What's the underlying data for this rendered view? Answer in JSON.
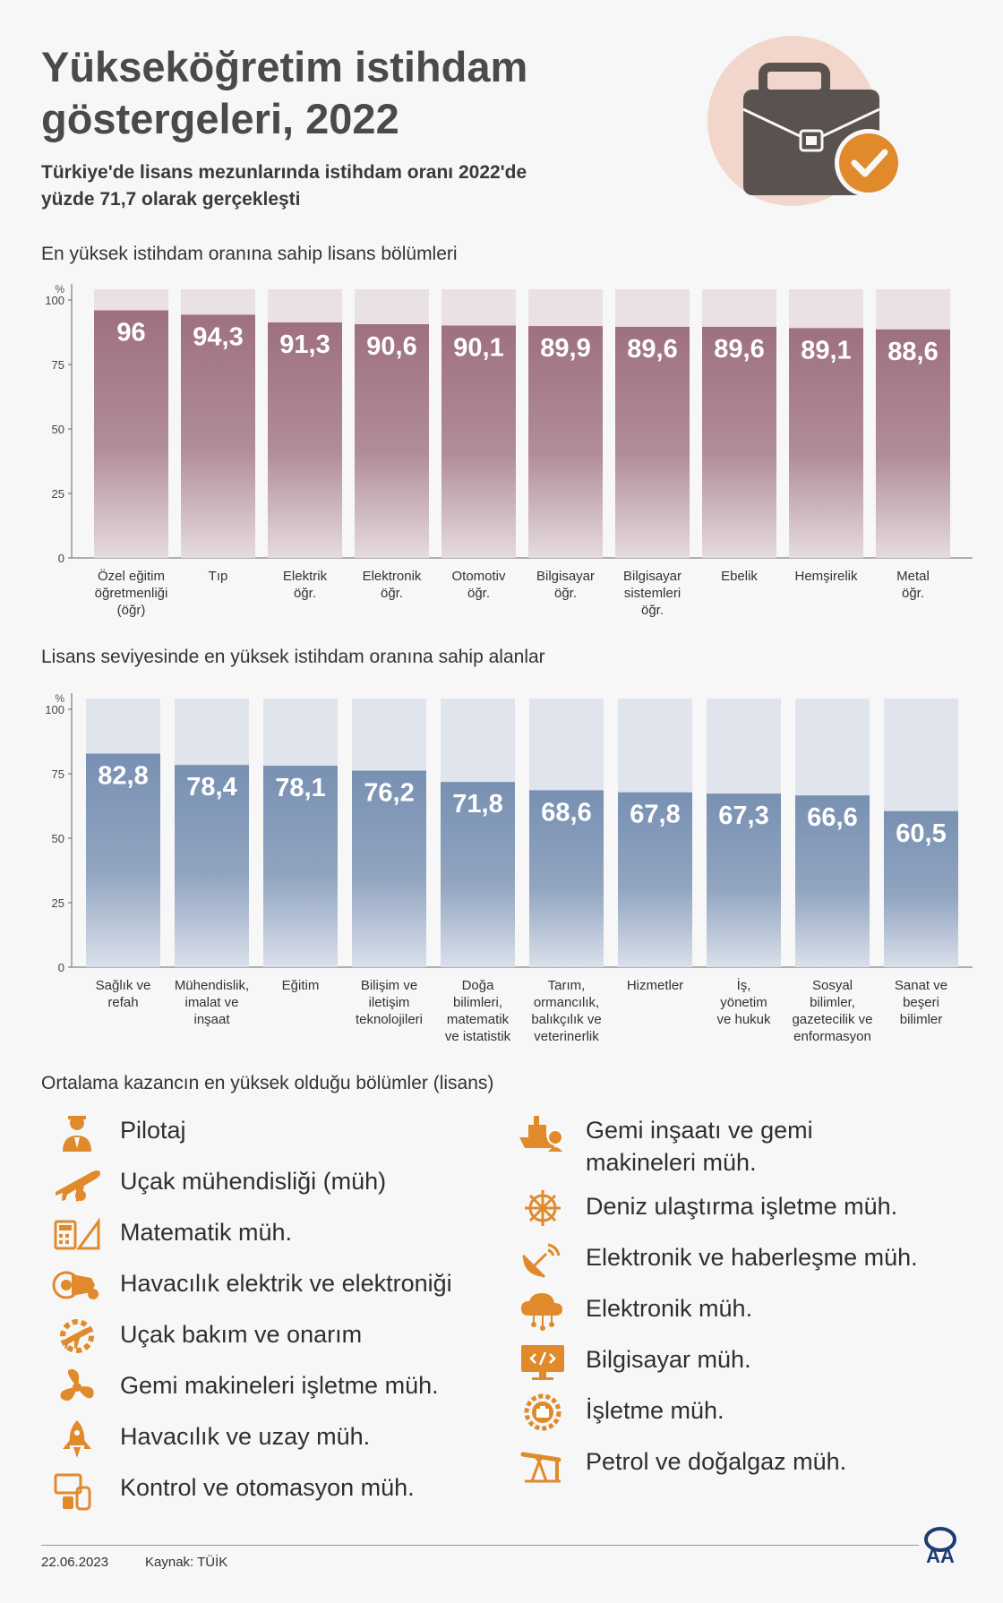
{
  "header": {
    "title_line1": "Yükseköğretim istihdam",
    "title_line2": "göstergeleri, 2022",
    "subtitle_line1": "Türkiye'de lisans mezunlarında istihdam oranı 2022'de",
    "subtitle_line2": "yüzde 71,7 olarak gerçekleşti"
  },
  "colors": {
    "chart1_bar": "#9e7080",
    "chart1_bg": "#e9e1e4",
    "chart2_bar": "#7890b2",
    "chart2_bg": "#dfe4ed",
    "icon_orange": "#e08a2c",
    "hero_circle": "#f2d6cb",
    "hero_case": "#5a524e"
  },
  "chart_data": [
    {
      "type": "bar",
      "title": "En yüksek istihdam oranına sahip lisans bölümleri",
      "unit": "%",
      "ylim": [
        0,
        100
      ],
      "yticks": [
        0,
        25,
        50,
        75,
        100
      ],
      "categories": [
        [
          "Özel eğitim",
          "öğretmenliği",
          "(öğr)"
        ],
        [
          "Tıp"
        ],
        [
          "Elektrik",
          "öğr."
        ],
        [
          "Elektronik",
          "öğr."
        ],
        [
          "Otomotiv",
          "öğr."
        ],
        [
          "Bilgisayar",
          "öğr."
        ],
        [
          "Bilgisayar",
          "sistemleri",
          "öğr."
        ],
        [
          "Ebelik"
        ],
        [
          "Hemşirelik"
        ],
        [
          "Metal",
          "öğr."
        ]
      ],
      "values": [
        96,
        94.3,
        91.3,
        90.6,
        90.1,
        89.9,
        89.6,
        89.6,
        89.1,
        88.6
      ],
      "value_labels": [
        "96",
        "94,3",
        "91,3",
        "90,6",
        "90,1",
        "89,9",
        "89,6",
        "89,6",
        "89,1",
        "88,6"
      ]
    },
    {
      "type": "bar",
      "title": "Lisans seviyesinde en yüksek istihdam oranına sahip alanlar",
      "unit": "%",
      "ylim": [
        0,
        100
      ],
      "yticks": [
        0,
        25,
        50,
        75,
        100
      ],
      "categories": [
        [
          "Sağlık ve",
          "refah"
        ],
        [
          "Mühendislik,",
          "imalat ve",
          "inşaat"
        ],
        [
          "Eğitim"
        ],
        [
          "Bilişim ve",
          "iletişim",
          "teknolojileri"
        ],
        [
          "Doğa",
          "bilimleri,",
          "matematik",
          "ve istatistik"
        ],
        [
          "Tarım,",
          "ormancılık,",
          "balıkçılık ve",
          "veterinerlik"
        ],
        [
          "Hizmetler"
        ],
        [
          "İş,",
          "yönetim",
          "ve hukuk"
        ],
        [
          "Sosyal",
          "bilimler,",
          "gazetecilik ve",
          "enformasyon"
        ],
        [
          "Sanat ve",
          "beşeri",
          "bilimler"
        ]
      ],
      "values": [
        82.8,
        78.4,
        78.1,
        76.2,
        71.8,
        68.6,
        67.8,
        67.3,
        66.6,
        60.5
      ],
      "value_labels": [
        "82,8",
        "78,4",
        "78,1",
        "76,2",
        "71,8",
        "68,6",
        "67,8",
        "67,3",
        "66,6",
        "60,5"
      ]
    }
  ],
  "earnings": {
    "title": "Ortalama kazancın en yüksek olduğu bölümler (lisans)",
    "left": [
      {
        "label": [
          "Pilotaj"
        ],
        "icon": "pilot-icon"
      },
      {
        "label": [
          "Uçak mühendisliği (müh)"
        ],
        "icon": "airplane-icon"
      },
      {
        "label": [
          "Matematik müh."
        ],
        "icon": "calculator-ruler-icon"
      },
      {
        "label": [
          "Havacılık elektrik ve elektroniği"
        ],
        "icon": "jet-engine-icon"
      },
      {
        "label": [
          "Uçak bakım ve onarım"
        ],
        "icon": "plane-gear-icon"
      },
      {
        "label": [
          "Gemi makineleri işletme müh."
        ],
        "icon": "propeller-icon"
      },
      {
        "label": [
          "Havacılık ve uzay müh."
        ],
        "icon": "rocket-icon"
      },
      {
        "label": [
          "Kontrol ve otomasyon müh."
        ],
        "icon": "control-devices-icon"
      }
    ],
    "right": [
      {
        "label": [
          "Gemi inşaatı ve gemi",
          "makineleri müh."
        ],
        "icon": "ship-engineer-icon"
      },
      {
        "label": [
          "Deniz ulaştırma işletme müh."
        ],
        "icon": "ship-wheel-icon"
      },
      {
        "label": [
          "Elektronik ve haberleşme müh."
        ],
        "icon": "satellite-dish-icon"
      },
      {
        "label": [
          "Elektronik müh."
        ],
        "icon": "cloud-circuit-icon"
      },
      {
        "label": [
          "Bilgisayar müh."
        ],
        "icon": "computer-code-icon"
      },
      {
        "label": [
          "İşletme müh."
        ],
        "icon": "business-gear-icon"
      },
      {
        "label": [
          "Petrol ve doğalgaz müh."
        ],
        "icon": "oil-pump-icon"
      }
    ]
  },
  "footer": {
    "date": "22.06.2023",
    "source": "Kaynak: TÜİK",
    "logo_text": "AA"
  }
}
